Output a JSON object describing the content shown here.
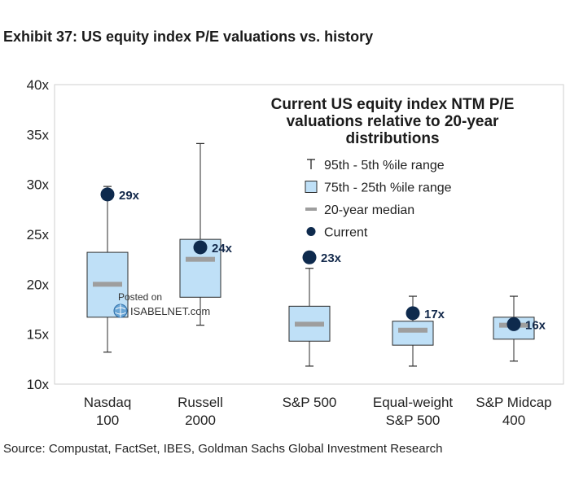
{
  "header": {
    "title": "Exhibit 37: US equity index P/E valuations vs. history"
  },
  "footer": {
    "source": "Source: Compustat, FactSet, IBES, Goldman Sachs Global Investment Research"
  },
  "watermark": {
    "posted": "Posted on",
    "site": "ISABELNET.com"
  },
  "colors": {
    "box_fill": "#bfe0f7",
    "box_stroke": "#2b2b2b",
    "median": "#9e9e9e",
    "current": "#0e2a4d",
    "label": "#13294b"
  },
  "chart_data": {
    "type": "boxplot",
    "title_lines": [
      "Current US equity index NTM P/E",
      "valuations relative to 20-year",
      "distributions"
    ],
    "ylim": [
      10,
      40
    ],
    "y_ticks": [
      10,
      15,
      20,
      25,
      30,
      35,
      40
    ],
    "y_tick_labels": [
      "10x",
      "15x",
      "20x",
      "25x",
      "30x",
      "35x",
      "40x"
    ],
    "legend": {
      "position": "top-right",
      "items": [
        {
          "symbol": "whisker",
          "label": "95th - 5th %ile range"
        },
        {
          "symbol": "box",
          "label": "75th - 25th %ile range"
        },
        {
          "symbol": "median",
          "label": "20-year median"
        },
        {
          "symbol": "current",
          "label": "Current"
        }
      ]
    },
    "series": [
      {
        "category_lines": [
          "Nasdaq",
          "100"
        ],
        "p5": 13.2,
        "p25": 16.7,
        "median": 20.0,
        "p75": 23.2,
        "p95": 29.8,
        "current": 29.0,
        "current_label": "29x"
      },
      {
        "category_lines": [
          "Russell",
          "2000"
        ],
        "p5": 15.9,
        "p25": 18.7,
        "median": 22.5,
        "p75": 24.5,
        "p95": 34.1,
        "current": 23.7,
        "current_label": "24x"
      },
      {
        "category_lines": [
          "S&P 500"
        ],
        "p5": 11.8,
        "p25": 14.3,
        "median": 16.0,
        "p75": 17.8,
        "p95": 21.6,
        "current": 22.7,
        "current_label": "23x"
      },
      {
        "category_lines": [
          "Equal-weight",
          "S&P 500"
        ],
        "p5": 11.8,
        "p25": 13.9,
        "median": 15.4,
        "p75": 16.3,
        "p95": 18.8,
        "current": 17.1,
        "current_label": "17x"
      },
      {
        "category_lines": [
          "S&P Midcap",
          "400"
        ],
        "p5": 12.3,
        "p25": 14.5,
        "median": 15.9,
        "p75": 16.7,
        "p95": 18.8,
        "current": 16.0,
        "current_label": "16x"
      }
    ]
  }
}
